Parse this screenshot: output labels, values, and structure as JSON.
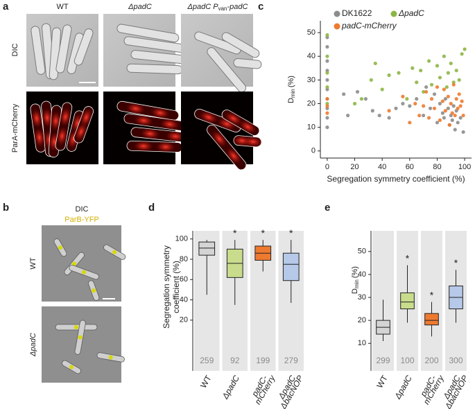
{
  "panels": {
    "a": {
      "letter": "a",
      "columns": [
        "WT",
        "ΔpadC",
        {
          "text": "ΔpadC P",
          "sub": "van",
          "tail": "-padC"
        }
      ],
      "rows": [
        "DIC",
        "ParA-mCherry"
      ]
    },
    "b": {
      "letter": "b",
      "legend": [
        "DIC",
        "ParB-YFP"
      ],
      "rows": [
        "WT",
        "ΔpadC"
      ]
    },
    "c": {
      "letter": "c"
    },
    "d": {
      "letter": "d"
    },
    "e": {
      "letter": "e"
    }
  },
  "chart_data": [
    {
      "type": "scatter",
      "x_label": "Segregation symmetry coefficient (%)",
      "y_label": {
        "main": "D",
        "sub": "min",
        "unit": "(%)"
      },
      "xlim": [
        -5,
        105
      ],
      "xticks": [
        0,
        20,
        40,
        60,
        80,
        100
      ],
      "ylim": [
        -3,
        55
      ],
      "yticks": [
        0,
        10,
        20,
        30,
        40,
        50
      ],
      "series": [
        {
          "name": "DK1622",
          "color": "#8c8c8c",
          "x": [
            0,
            0,
            0,
            0,
            0,
            0,
            0,
            0,
            0,
            0,
            12,
            15,
            22,
            28,
            33,
            38,
            45,
            50,
            55,
            60,
            65,
            70,
            72,
            75,
            78,
            80,
            82,
            84,
            85,
            86,
            88,
            89,
            90,
            91,
            92,
            93,
            94,
            95,
            97,
            99
          ],
          "values": [
            10,
            14,
            18,
            22,
            26,
            30,
            34,
            38,
            44,
            48,
            24,
            15,
            25,
            22,
            17,
            15,
            14,
            18,
            20,
            19,
            22,
            15,
            27,
            18,
            24,
            12,
            20,
            16,
            14,
            22,
            18,
            11,
            15,
            13,
            19,
            9,
            17,
            12,
            14,
            8
          ]
        },
        {
          "name": "ΔpadC",
          "color": "#8db645",
          "x": [
            0,
            0,
            0,
            0,
            0,
            20,
            25,
            32,
            35,
            40,
            45,
            52,
            58,
            62,
            65,
            68,
            70,
            74,
            76,
            80,
            82,
            85,
            87,
            88,
            90,
            92,
            94,
            96,
            98,
            100
          ],
          "values": [
            20,
            27,
            33,
            40,
            49,
            20,
            22,
            30,
            37,
            26,
            32,
            33,
            22,
            35,
            29,
            34,
            25,
            38,
            28,
            36,
            31,
            40,
            27,
            33,
            37,
            29,
            34,
            30,
            41,
            43
          ]
        },
        {
          "name": "padC-mCherry",
          "color": "#ee7a30",
          "x": [
            0,
            0,
            0,
            45,
            55,
            60,
            64,
            67,
            70,
            72,
            74,
            76,
            78,
            80,
            82,
            84,
            85,
            86,
            88,
            89,
            90,
            91,
            92,
            93,
            94,
            95,
            96,
            97,
            98,
            99
          ],
          "values": [
            16,
            19,
            22,
            17,
            23,
            12,
            20,
            15,
            19,
            25,
            14,
            22,
            18,
            27,
            13,
            21,
            26,
            17,
            23,
            11,
            20,
            16,
            28,
            15,
            22,
            18,
            24,
            19,
            21,
            15
          ]
        }
      ]
    },
    {
      "type": "box",
      "y_label": [
        "Segregation symmetry",
        "coefficient (%)"
      ],
      "ylim": [
        -30,
        108
      ],
      "yticks": [
        20,
        40,
        60,
        80,
        100
      ],
      "boxes": [
        {
          "category": [
            "WT"
          ],
          "min": 45,
          "q1": 84,
          "median": 91,
          "q3": 97,
          "max": 99,
          "n": 259,
          "color": "#d4d4d4"
        },
        {
          "category": [
            "ΔpadC"
          ],
          "min": 35,
          "q1": 62,
          "median": 76,
          "q3": 90,
          "max": 99,
          "n": 92,
          "color": "#c9dc8c",
          "mark": "*"
        },
        {
          "category": [
            "padC-",
            "mCherry"
          ],
          "min": 68,
          "q1": 79,
          "median": 86,
          "q3": 93,
          "max": 99,
          "n": 199,
          "color": "#ee7a30",
          "mark": "*"
        },
        {
          "category": [
            "ΔpadC",
            "ΔbacNOP"
          ],
          "min": 37,
          "q1": 59,
          "median": 75,
          "q3": 86,
          "max": 99,
          "n": 279,
          "color": "#b6c9e8",
          "mark": "*"
        }
      ]
    },
    {
      "type": "box",
      "y_label": {
        "main": "D",
        "sub": "min",
        "unit": "(%)"
      },
      "ylim": [
        -2,
        59
      ],
      "yticks": [
        10,
        20,
        30,
        40,
        50
      ],
      "boxes": [
        {
          "category": [
            "WT"
          ],
          "min": 11,
          "q1": 14,
          "median": 17,
          "q3": 20,
          "max": 29,
          "n": 299,
          "color": "#d4d4d4"
        },
        {
          "category": [
            "ΔpadC"
          ],
          "min": 19,
          "q1": 25,
          "median": 28,
          "q3": 32,
          "max": 44,
          "n": 100,
          "color": "#c9dc8c",
          "mark": "*"
        },
        {
          "category": [
            "padC-",
            "mCherry"
          ],
          "min": 13,
          "q1": 18,
          "median": 20,
          "q3": 23,
          "max": 28,
          "n": 200,
          "color": "#ee7a30",
          "mark": "*"
        },
        {
          "category": [
            "ΔpadC",
            "ΔbacNOP"
          ],
          "min": 19,
          "q1": 25,
          "median": 30,
          "q3": 35,
          "max": 42,
          "n": 300,
          "color": "#b6c9e8",
          "mark": "*"
        }
      ]
    }
  ]
}
